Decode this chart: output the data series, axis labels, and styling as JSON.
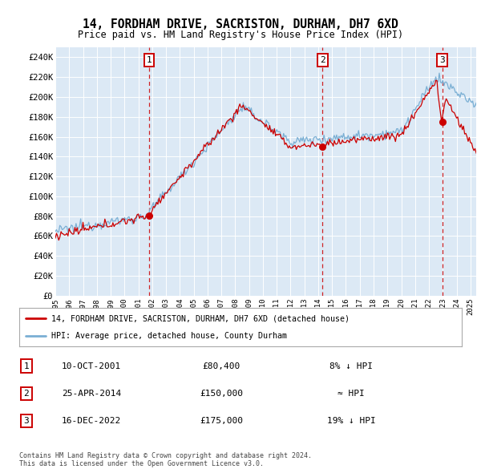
{
  "title": "14, FORDHAM DRIVE, SACRISTON, DURHAM, DH7 6XD",
  "subtitle": "Price paid vs. HM Land Registry's House Price Index (HPI)",
  "ylabel_ticks": [
    "£0",
    "£20K",
    "£40K",
    "£60K",
    "£80K",
    "£100K",
    "£120K",
    "£140K",
    "£160K",
    "£180K",
    "£200K",
    "£220K",
    "£240K"
  ],
  "ytick_values": [
    0,
    20000,
    40000,
    60000,
    80000,
    100000,
    120000,
    140000,
    160000,
    180000,
    200000,
    220000,
    240000
  ],
  "ylim": [
    0,
    250000
  ],
  "background_color": "#dce9f5",
  "plot_bg_color": "#dce9f5",
  "fig_bg_color": "#ffffff",
  "legend_labels": [
    "14, FORDHAM DRIVE, SACRISTON, DURHAM, DH7 6XD (detached house)",
    "HPI: Average price, detached house, County Durham"
  ],
  "sale_prices": [
    80400,
    150000,
    175000
  ],
  "table_data": [
    [
      "1",
      "10-OCT-2001",
      "£80,400",
      "8% ↓ HPI"
    ],
    [
      "2",
      "25-APR-2014",
      "£150,000",
      "≈ HPI"
    ],
    [
      "3",
      "16-DEC-2022",
      "£175,000",
      "19% ↓ HPI"
    ]
  ],
  "footer": "Contains HM Land Registry data © Crown copyright and database right 2024.\nThis data is licensed under the Open Government Licence v3.0.",
  "line_color_red": "#cc0000",
  "line_color_blue": "#7aafd4",
  "sale_marker_color": "#cc0000",
  "dashed_line_color": "#cc0000"
}
